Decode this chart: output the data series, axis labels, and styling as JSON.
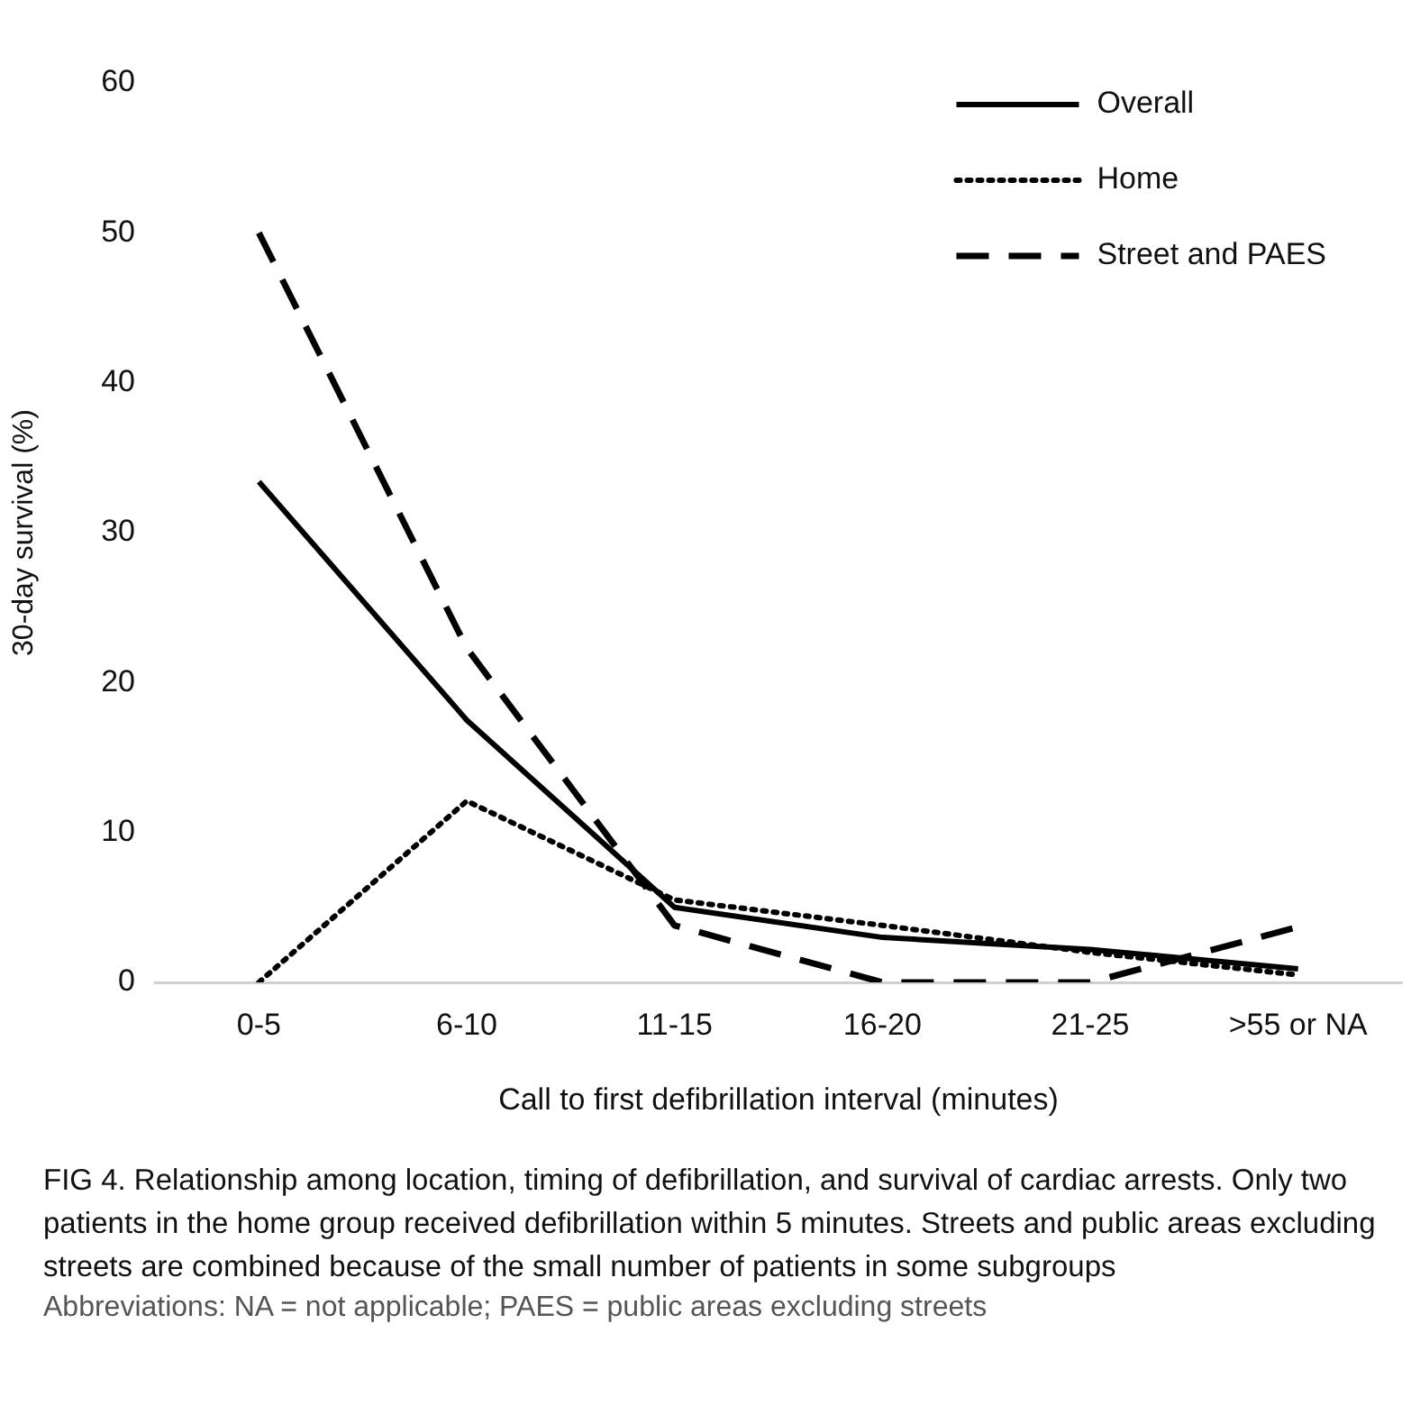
{
  "chart_data": {
    "type": "line",
    "title": "FIG 4.  Relationship among location, timing of defibrillation, and survival of cardiac arrests. Only two patients in the home group received defibrillation within 5 minutes. Streets and public areas excluding streets are combined because of the small number of patients in some subgroups",
    "annotations": [
      "Abbreviations: NA = not applicable; PAES = public areas excluding streets"
    ],
    "xlabel": "Call to first defibrillation interval (minutes)",
    "ylabel": "30-day survival (%)",
    "categories": [
      "0-5",
      "6-10",
      "11-15",
      "16-20",
      "21-25",
      ">55 or NA"
    ],
    "series": [
      {
        "name": "Overall",
        "color": "#000000",
        "line_style": "solid",
        "values": [
          33.4,
          17.5,
          5.0,
          3.0,
          2.2,
          0.9
        ]
      },
      {
        "name": "Home",
        "color": "#000000",
        "line_style": "dotted",
        "values": [
          0,
          12.1,
          5.5,
          3.8,
          2.0,
          0.5
        ]
      },
      {
        "name": "Street and PAES",
        "color": "#000000",
        "line_style": "dashed",
        "values": [
          50.0,
          22.3,
          3.8,
          0,
          0,
          3.7
        ]
      }
    ],
    "ylim": [
      0,
      60
    ],
    "yticks": [
      0,
      10,
      20,
      30,
      40,
      50,
      60
    ],
    "grid": false,
    "legend": "top right",
    "marker": "none"
  }
}
